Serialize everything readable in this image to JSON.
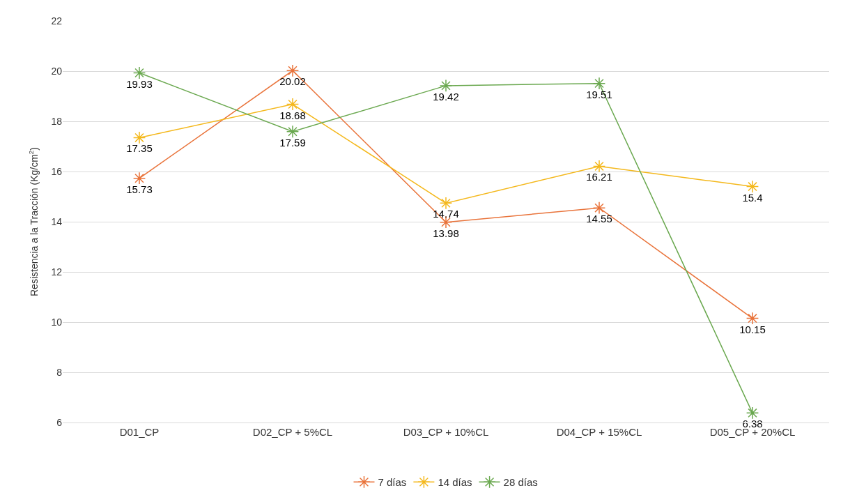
{
  "chart_data": {
    "type": "line",
    "ylabel": "Resistencia a la Tracción (Kg/cm$^{2}$)",
    "categories": [
      "D01_CP",
      "D02_CP + 5%CL",
      "D03_CP + 10%CL",
      "D04_CP + 15%CL",
      "D05_CP + 20%CL"
    ],
    "series": [
      {
        "name": "7 días",
        "color": "#e9733a",
        "values": [
          15.73,
          20.02,
          13.98,
          14.55,
          10.15
        ]
      },
      {
        "name": "14 días",
        "color": "#f4b81c",
        "values": [
          17.35,
          18.68,
          14.74,
          16.21,
          15.4
        ]
      },
      {
        "name": "28 días",
        "color": "#6aa84f",
        "values": [
          19.93,
          17.59,
          19.42,
          19.51,
          6.38
        ]
      }
    ],
    "ylim": [
      6,
      22
    ],
    "yticks": [
      6,
      8,
      10,
      12,
      14,
      16,
      18,
      20,
      22
    ],
    "grid": "y",
    "legend": "bottom",
    "marker": "cross",
    "line_style": "solid",
    "data_labels": true
  }
}
